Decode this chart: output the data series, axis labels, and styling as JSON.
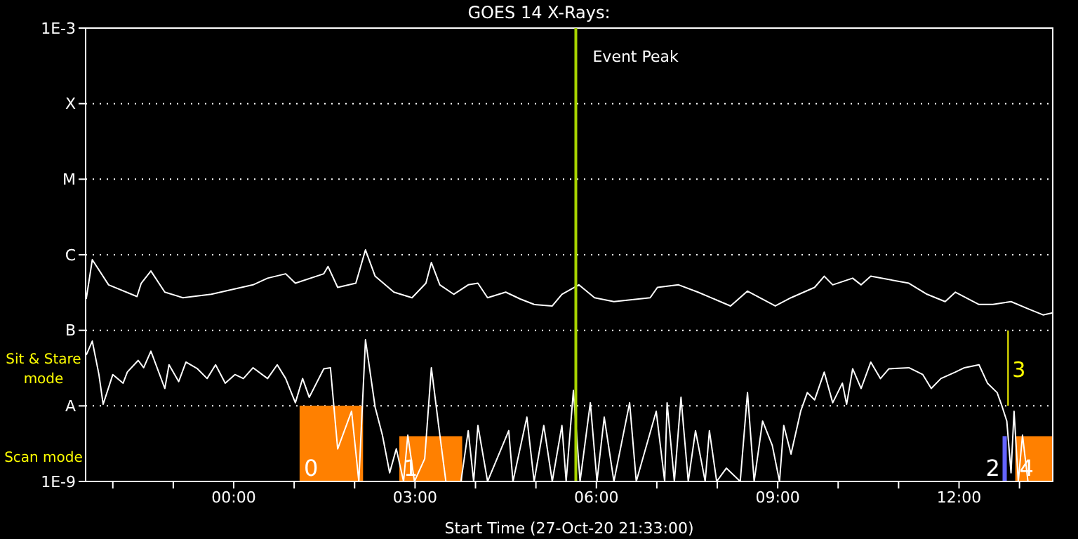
{
  "chart_data": {
    "type": "line",
    "title": "GOES 14 X-Rays:",
    "xlabel": "Start Time (27-Oct-20 21:33:00)",
    "annotations": [
      "Sit & Stare mode",
      "Scan mode",
      "3"
    ],
    "log": "y",
    "grid": "y",
    "xlim": [
      -2.45,
      13.55
    ],
    "xticks": [
      {
        "value": -2,
        "label": null
      },
      {
        "value": -1,
        "label": null
      },
      {
        "value": 0,
        "label": "00:00"
      },
      {
        "value": 1,
        "label": null
      },
      {
        "value": 2,
        "label": null
      },
      {
        "value": 3,
        "label": "03:00"
      },
      {
        "value": 4,
        "label": null
      },
      {
        "value": 5,
        "label": null
      },
      {
        "value": 6,
        "label": "06:00"
      },
      {
        "value": 7,
        "label": null
      },
      {
        "value": 8,
        "label": null
      },
      {
        "value": 9,
        "label": "09:00"
      },
      {
        "value": 10,
        "label": null
      },
      {
        "value": 11,
        "label": null
      },
      {
        "value": 12,
        "label": "12:00"
      },
      {
        "value": 13,
        "label": null
      }
    ],
    "ylim": [
      1e-09,
      0.001
    ],
    "yticks": [
      {
        "value": 1e-09,
        "label": "1E-9"
      },
      {
        "value": 1e-08,
        "label": "A"
      },
      {
        "value": 1e-07,
        "label": "B"
      },
      {
        "value": 1e-06,
        "label": "C"
      },
      {
        "value": 1e-05,
        "label": "M"
      },
      {
        "value": 0.0001,
        "label": "X"
      },
      {
        "value": 0.001,
        "label": "1E-3"
      }
    ],
    "ref_lines": [
      {
        "axis": "x",
        "value": 5.66,
        "label": "Event Peak",
        "color": "#a8d400"
      },
      {
        "axis": "x",
        "value": 12.81,
        "color": "#ffff00"
      }
    ],
    "bands": [
      {
        "axis": "x",
        "from": 1.09,
        "to": 2.14,
        "label": "0",
        "color": "#ff8000"
      },
      {
        "axis": "x",
        "from": 2.74,
        "to": 3.78,
        "label": "1",
        "color": "#ff8000"
      },
      {
        "axis": "x",
        "from": 12.72,
        "to": 12.79,
        "label": "2",
        "color": "#6464ff"
      },
      {
        "axis": "x",
        "from": 12.93,
        "to": 13.55,
        "label": "4",
        "color": "#ff8000"
      }
    ],
    "series": [
      {
        "color": "#ffffff",
        "x": [
          -2.44,
          -2.34,
          -2.07,
          -1.6,
          -1.53,
          -1.37,
          -1.14,
          -0.84,
          -0.37,
          0.32,
          0.56,
          0.86,
          1.02,
          1.49,
          1.56,
          1.72,
          2.02,
          2.18,
          2.34,
          2.65,
          2.95,
          3.18,
          3.27,
          3.41,
          3.64,
          3.88,
          4.04,
          4.2,
          4.5,
          4.74,
          4.97,
          5.27,
          5.43,
          5.71,
          5.97,
          6.29,
          6.89,
          7.01,
          7.36,
          7.68,
          8.22,
          8.5,
          8.96,
          9.22,
          9.61,
          9.77,
          9.91,
          10.24,
          10.38,
          10.54,
          11.17,
          11.47,
          11.77,
          11.94,
          12.33,
          12.56,
          12.86,
          13.16,
          13.39,
          13.55
        ],
        "values": [
          2.6e-07,
          8.6e-07,
          4e-07,
          2.8e-07,
          4.2e-07,
          6.1e-07,
          3.2e-07,
          2.7e-07,
          3e-07,
          4e-07,
          4.9e-07,
          5.6e-07,
          4.2e-07,
          5.6e-07,
          7e-07,
          3.7e-07,
          4.2e-07,
          1.16e-06,
          5.2e-07,
          3.2e-07,
          2.7e-07,
          4.2e-07,
          7.9e-07,
          4e-07,
          3e-07,
          4e-07,
          4.2e-07,
          2.7e-07,
          3.2e-07,
          2.6e-07,
          2.2e-07,
          2.1e-07,
          3e-07,
          4e-07,
          2.7e-07,
          2.4e-07,
          2.7e-07,
          3.7e-07,
          4e-07,
          3.2e-07,
          2.1e-07,
          3.3e-07,
          2.1e-07,
          2.7e-07,
          3.7e-07,
          5.2e-07,
          4e-07,
          4.9e-07,
          4e-07,
          5.2e-07,
          4.2e-07,
          3e-07,
          2.4e-07,
          3.2e-07,
          2.2e-07,
          2.2e-07,
          2.4e-07,
          1.9e-07,
          1.6e-07,
          1.7e-07
        ]
      },
      {
        "color": "#ffffff",
        "x": [
          -2.44,
          -2.34,
          -2.23,
          -2.16,
          -2.0,
          -1.83,
          -1.76,
          -1.58,
          -1.49,
          -1.37,
          -1.14,
          -1.07,
          -0.91,
          -0.79,
          -0.6,
          -0.44,
          -0.3,
          -0.14,
          0.02,
          0.16,
          0.32,
          0.56,
          0.72,
          0.86,
          1.02,
          1.14,
          1.25,
          1.49,
          1.6,
          1.72,
          1.95,
          2.07,
          2.18,
          2.34,
          2.46,
          2.58,
          2.69,
          2.81,
          2.88,
          2.99,
          3.16,
          3.27,
          3.39,
          3.51,
          3.76,
          3.88,
          3.97,
          4.04,
          4.2,
          4.55,
          4.62,
          4.85,
          4.97,
          5.13,
          5.27,
          5.43,
          5.5,
          5.62,
          5.73,
          5.9,
          6.01,
          6.13,
          6.29,
          6.55,
          6.66,
          6.99,
          7.13,
          7.17,
          7.29,
          7.4,
          7.52,
          7.64,
          7.8,
          7.87,
          7.99,
          8.15,
          8.38,
          8.5,
          8.61,
          8.75,
          8.91,
          9.03,
          9.1,
          9.22,
          9.38,
          9.49,
          9.61,
          9.77,
          9.91,
          10.07,
          10.14,
          10.24,
          10.38,
          10.54,
          10.7,
          10.84,
          11.17,
          11.4,
          11.54,
          11.7,
          11.94,
          12.09,
          12.33,
          12.47,
          12.63,
          12.7,
          12.79,
          12.86,
          12.91,
          12.98,
          13.05,
          13.14
        ],
        "values": [
          4.7e-08,
          7.2e-08,
          2.6e-08,
          1.05e-08,
          2.6e-08,
          2e-08,
          2.8e-08,
          4e-08,
          3.2e-08,
          5.3e-08,
          1.7e-08,
          3.5e-08,
          2.1e-08,
          3.8e-08,
          3.1e-08,
          2.3e-08,
          3.5e-08,
          2e-08,
          2.6e-08,
          2.3e-08,
          3.2e-08,
          2.3e-08,
          3.5e-08,
          2.3e-08,
          1.1e-08,
          2.3e-08,
          1.3e-08,
          3.1e-08,
          3.2e-08,
          2.7e-09,
          8.5e-09,
          1e-09,
          7.5e-08,
          9.6e-09,
          4.1e-09,
          1.3e-09,
          2.7e-09,
          1e-09,
          4.1e-09,
          1e-09,
          2e-09,
          3.2e-08,
          5.5e-09,
          1e-09,
          1e-09,
          4.7e-09,
          1e-09,
          5.5e-09,
          1e-09,
          4.7e-09,
          1e-09,
          7.1e-09,
          1e-09,
          5.5e-09,
          1e-09,
          5.5e-09,
          1e-09,
          1.6e-08,
          1e-09,
          1.1e-08,
          1e-09,
          7.1e-09,
          1e-09,
          1.1e-08,
          1e-09,
          8.5e-09,
          1e-09,
          1.1e-08,
          1e-09,
          1.3e-08,
          1e-09,
          4.7e-09,
          1e-09,
          4.7e-09,
          1e-09,
          1.5e-09,
          1e-09,
          1.5e-08,
          1e-09,
          6.3e-09,
          3e-09,
          1e-09,
          5.5e-09,
          2.3e-09,
          8.5e-09,
          1.5e-08,
          1.2e-08,
          2.8e-08,
          1.1e-08,
          2e-08,
          1.05e-08,
          3.1e-08,
          1.7e-08,
          3.8e-08,
          2.3e-08,
          3.1e-08,
          3.2e-08,
          2.6e-08,
          1.7e-08,
          2.3e-08,
          2.8e-08,
          3.2e-08,
          3.5e-08,
          2e-08,
          1.5e-08,
          1.05e-08,
          6.3e-09,
          1.3e-09,
          8.5e-09,
          1e-09,
          4.1e-09,
          1e-09
        ]
      }
    ]
  }
}
